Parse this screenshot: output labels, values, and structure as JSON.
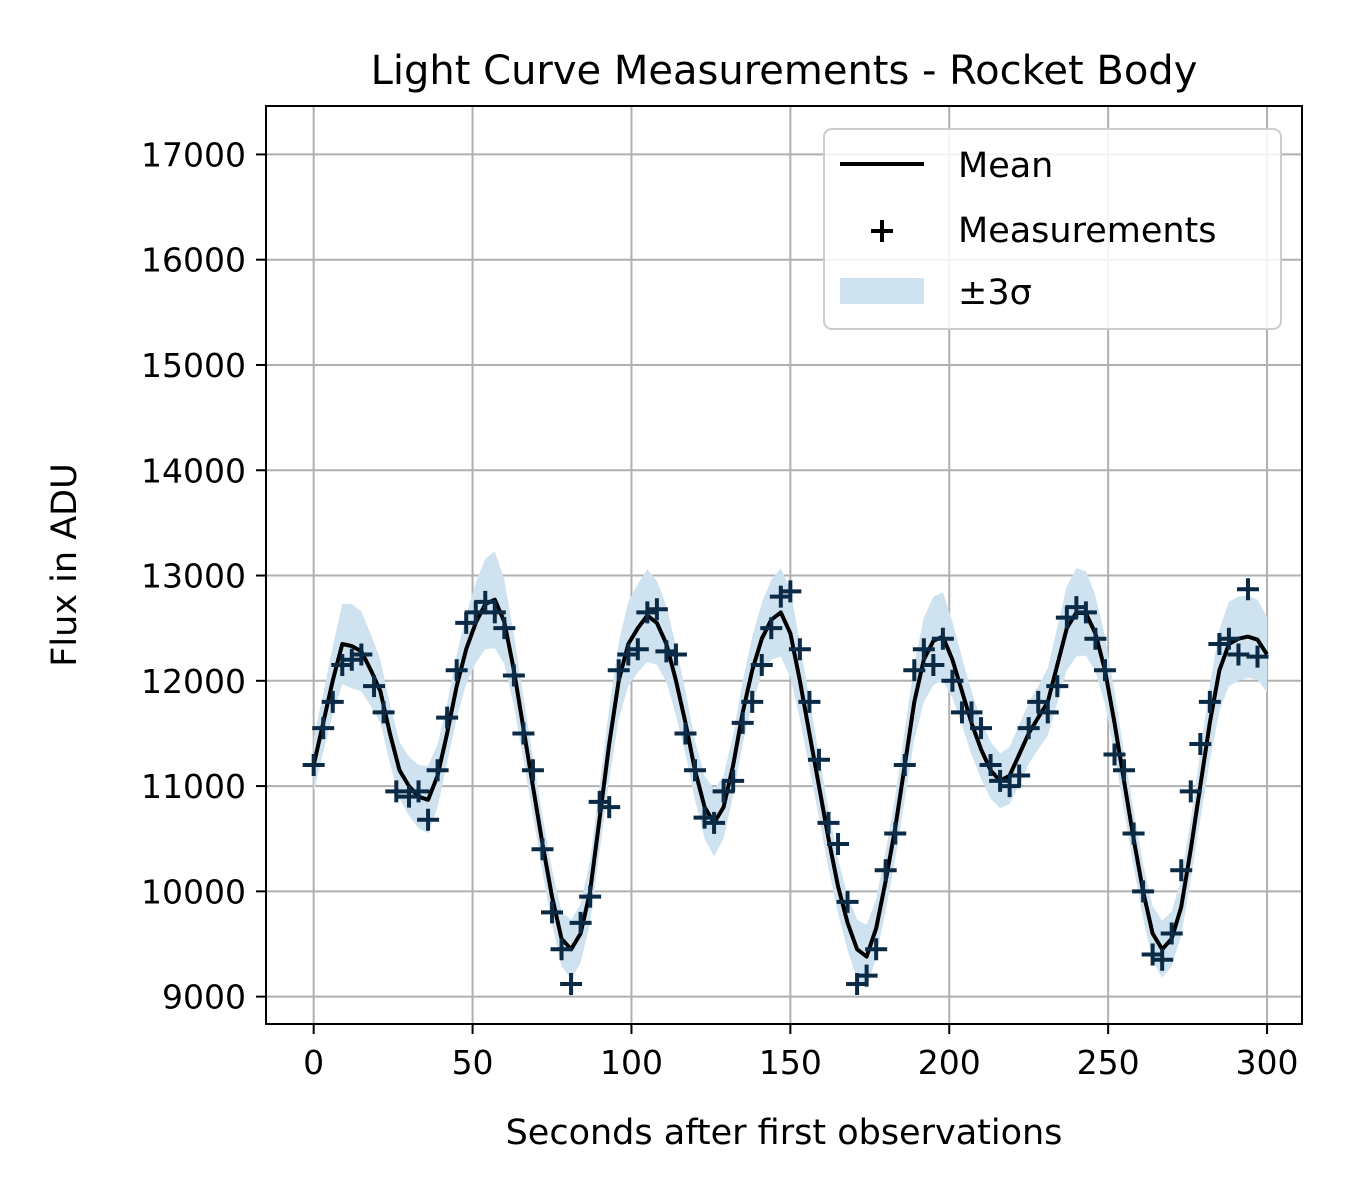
{
  "chart_data": {
    "type": "line",
    "title": "Light Curve Measurements - Rocket Body",
    "xlabel": "Seconds after first observations",
    "ylabel": "Flux in ADU",
    "xlim": [
      -15,
      311
    ],
    "ylim": [
      8740,
      17460
    ],
    "xticks": [
      0,
      50,
      100,
      150,
      200,
      250,
      300
    ],
    "yticks": [
      9000,
      10000,
      11000,
      12000,
      13000,
      14000,
      15000,
      16000,
      17000
    ],
    "xtick_labels": [
      "0",
      "50",
      "100",
      "150",
      "200",
      "250",
      "300"
    ],
    "ytick_labels": [
      "9000",
      "10000",
      "11000",
      "12000",
      "13000",
      "14000",
      "15000",
      "16000",
      "17000"
    ],
    "grid": true,
    "legend_position": "top-right",
    "legend": [
      {
        "label": "Mean",
        "kind": "line"
      },
      {
        "label": "Measurements",
        "kind": "marker"
      },
      {
        "label": "±3σ",
        "kind": "band"
      }
    ],
    "colors": {
      "mean": "#000000",
      "measurements": "#000000",
      "band": "#cfe2f0",
      "marker_overlay": "#0b2a45"
    },
    "mean": {
      "x": [
        0,
        3,
        6,
        9,
        12,
        15,
        18,
        21,
        24,
        27,
        30,
        33,
        36,
        39,
        42,
        45,
        48,
        51,
        54,
        57,
        60,
        63,
        66,
        69,
        72,
        75,
        78,
        81,
        84,
        87,
        90,
        93,
        96,
        99,
        102,
        105,
        108,
        111,
        114,
        117,
        120,
        123,
        126,
        129,
        132,
        135,
        138,
        141,
        144,
        147,
        150,
        153,
        156,
        159,
        162,
        165,
        168,
        171,
        174,
        177,
        180,
        183,
        186,
        189,
        192,
        195,
        198,
        201,
        204,
        207,
        210,
        213,
        216,
        219,
        222,
        225,
        228,
        231,
        234,
        237,
        240,
        243,
        246,
        249,
        252,
        255,
        258,
        261,
        264,
        267,
        270,
        273,
        276,
        279,
        282,
        285,
        288,
        291,
        294,
        297,
        300
      ],
      "y": [
        11200,
        11600,
        12000,
        12350,
        12330,
        12280,
        12100,
        11900,
        11500,
        11150,
        11000,
        10900,
        10870,
        11100,
        11500,
        11950,
        12300,
        12550,
        12730,
        12770,
        12560,
        12100,
        11550,
        11000,
        10450,
        9950,
        9550,
        9450,
        9600,
        10000,
        10700,
        11400,
        12000,
        12350,
        12500,
        12620,
        12550,
        12350,
        12000,
        11600,
        11150,
        10800,
        10650,
        10800,
        11200,
        11700,
        12100,
        12400,
        12580,
        12650,
        12450,
        12000,
        11500,
        11000,
        10500,
        10050,
        9700,
        9450,
        9380,
        9650,
        10100,
        10600,
        11200,
        11800,
        12200,
        12380,
        12420,
        12200,
        11900,
        11600,
        11350,
        11150,
        11050,
        11100,
        11300,
        11500,
        11650,
        11800,
        12150,
        12500,
        12650,
        12640,
        12450,
        12100,
        11600,
        11050,
        10500,
        10000,
        9600,
        9450,
        9550,
        9850,
        10400,
        11000,
        11600,
        12100,
        12350,
        12400,
        12420,
        12390,
        12250
      ]
    },
    "band_sigma": [
      260,
      280,
      320,
      380,
      400,
      380,
      340,
      300,
      280,
      270,
      280,
      300,
      320,
      300,
      280,
      300,
      330,
      380,
      430,
      460,
      400,
      340,
      300,
      280,
      270,
      260,
      260,
      280,
      280,
      300,
      320,
      340,
      360,
      400,
      420,
      440,
      400,
      360,
      330,
      300,
      280,
      300,
      320,
      300,
      290,
      300,
      320,
      340,
      380,
      420,
      420,
      360,
      330,
      300,
      280,
      260,
      260,
      280,
      300,
      280,
      280,
      300,
      330,
      360,
      400,
      420,
      420,
      360,
      320,
      300,
      280,
      270,
      260,
      270,
      280,
      290,
      300,
      320,
      360,
      400,
      420,
      400,
      360,
      320,
      300,
      280,
      270,
      260,
      260,
      270,
      260,
      270,
      290,
      320,
      360,
      390,
      400,
      400,
      390,
      380,
      360
    ],
    "measurements": {
      "x": [
        0,
        3,
        6,
        9,
        12,
        15,
        19,
        22,
        26,
        30,
        33,
        36,
        39,
        42,
        45,
        48,
        51,
        54,
        57,
        60,
        63,
        66,
        69,
        72,
        75,
        78,
        81,
        84,
        87,
        90,
        93,
        96,
        99,
        102,
        105,
        108,
        111,
        114,
        117,
        120,
        123,
        126,
        129,
        132,
        135,
        138,
        141,
        144,
        147,
        150,
        153,
        156,
        159,
        162,
        165,
        168,
        171,
        174,
        177,
        180,
        183,
        186,
        189,
        192,
        195,
        198,
        201,
        204,
        207,
        210,
        213,
        216,
        219,
        222,
        225,
        228,
        231,
        234,
        237,
        240,
        243,
        246,
        249,
        252,
        255,
        258,
        261,
        264,
        267,
        270,
        273,
        276,
        279,
        282,
        285,
        288,
        291,
        294,
        297
      ],
      "y": [
        11200,
        11550,
        11800,
        12150,
        12200,
        12250,
        11950,
        11700,
        10950,
        10900,
        10950,
        10680,
        11150,
        11650,
        12100,
        12550,
        12650,
        12750,
        12650,
        12500,
        12050,
        11500,
        11150,
        10400,
        9800,
        9450,
        9120,
        9700,
        9950,
        10850,
        10800,
        12100,
        12250,
        12300,
        12650,
        12680,
        12280,
        12250,
        11500,
        11150,
        10700,
        10650,
        10950,
        11050,
        11600,
        11800,
        12150,
        12500,
        12800,
        12850,
        12300,
        11800,
        11250,
        10650,
        10450,
        9900,
        9120,
        9200,
        9450,
        10200,
        10550,
        11200,
        12100,
        12300,
        12150,
        12400,
        12000,
        11700,
        11700,
        11550,
        11200,
        11050,
        11000,
        11100,
        11550,
        11800,
        11700,
        11950,
        12600,
        12700,
        12650,
        12400,
        12100,
        11300,
        11150,
        10550,
        10000,
        9400,
        9350,
        9600,
        10200,
        10950,
        11400,
        11800,
        12350,
        12400,
        12250,
        12870,
        12230
      ]
    }
  }
}
